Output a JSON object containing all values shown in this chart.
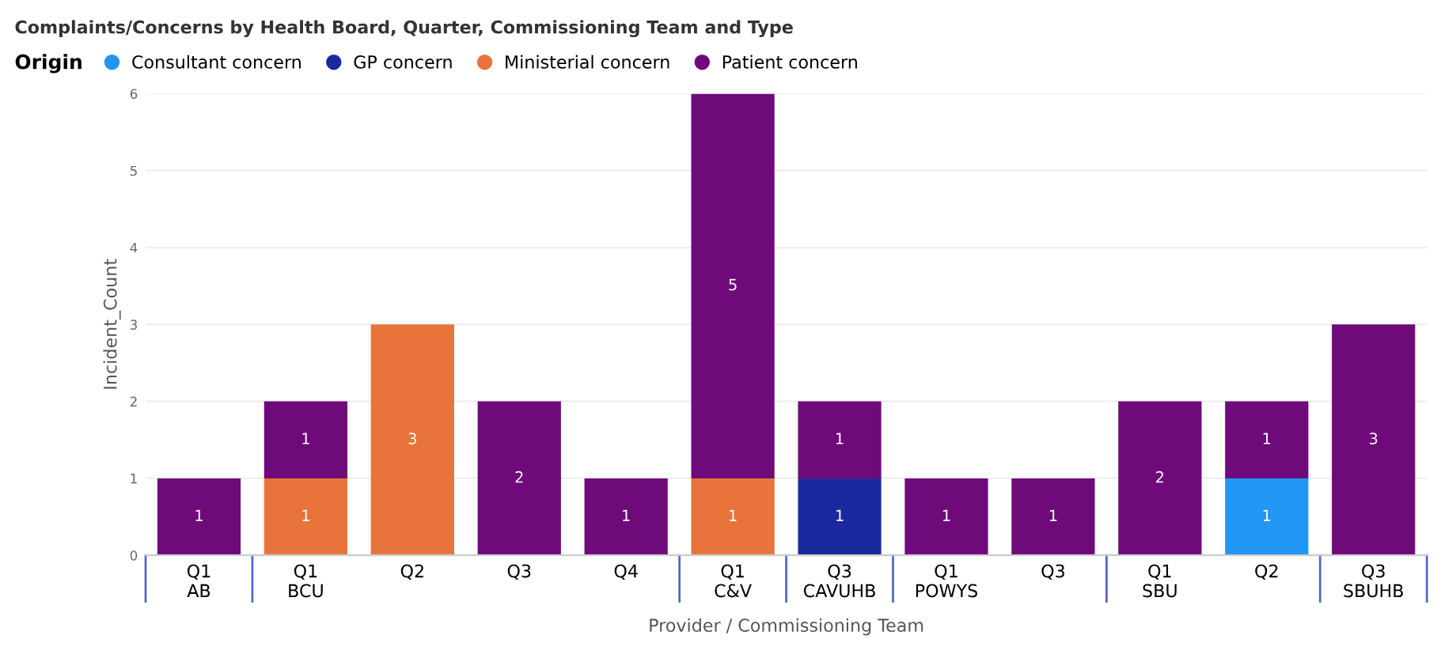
{
  "chart_data": {
    "type": "bar",
    "title": "Complaints/Concerns by Health Board, Quarter, Commissioning Team and Type",
    "legend_title": "Origin",
    "xlabel": "Provider / Commissioning Team",
    "ylabel": "Incident_Count",
    "categories": [
      "Q1\nAB",
      "Q1\nBCU",
      "Q2",
      "Q3",
      "Q4",
      "Q1\nC&V",
      "Q3\nCAVUHB",
      "Q1\nPOWYS",
      "Q3",
      "Q1\nSBU",
      "Q2",
      "Q3\nSBUHB"
    ],
    "stacked": true,
    "data_labels": true,
    "legend": "top left",
    "grid": "y",
    "ylim": [
      0,
      6
    ],
    "yticks": [
      0,
      1,
      2,
      3,
      4,
      5,
      6
    ],
    "series": [
      {
        "name": "Consultant concern",
        "color": "#2196f3",
        "values": [
          null,
          null,
          null,
          null,
          null,
          null,
          null,
          null,
          null,
          null,
          1,
          null
        ]
      },
      {
        "name": "GP concern",
        "color": "#1a2a9e",
        "values": [
          null,
          null,
          null,
          null,
          null,
          null,
          1,
          null,
          null,
          null,
          null,
          null
        ]
      },
      {
        "name": "Ministerial concern",
        "color": "#e8743b",
        "values": [
          null,
          1,
          3,
          null,
          null,
          1,
          null,
          null,
          null,
          null,
          null,
          null
        ]
      },
      {
        "name": "Patient concern",
        "color": "#6f0a7a",
        "values": [
          1,
          1,
          null,
          2,
          1,
          5,
          1,
          1,
          1,
          2,
          1,
          3
        ]
      }
    ]
  }
}
